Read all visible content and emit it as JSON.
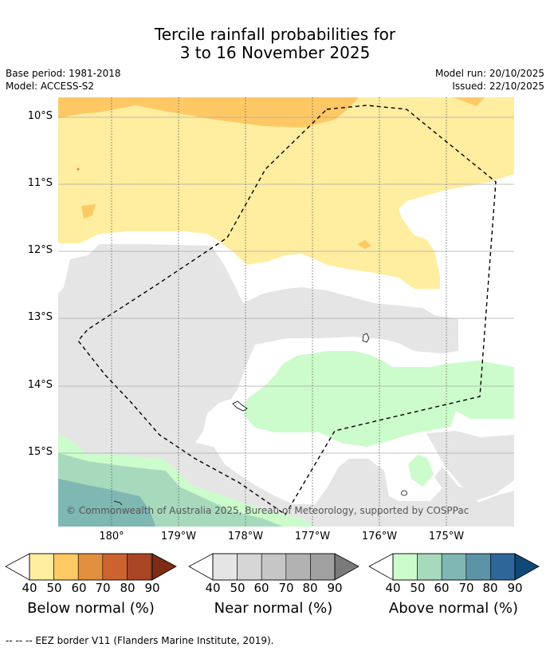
{
  "title": {
    "line1": "Tercile rainfall probabilities for",
    "line2": "3 to 16 November 2025"
  },
  "meta": {
    "base_period": "Base period: 1981-2018",
    "model": "Model: ACCESS-S2",
    "model_run": "Model run: 20/10/2025",
    "issued": "Issued: 22/10/2025"
  },
  "map": {
    "lat_labels": [
      "10°S",
      "11°S",
      "12°S",
      "13°S",
      "14°S",
      "15°S"
    ],
    "lon_labels": [
      "180°",
      "179°W",
      "178°W",
      "177°W",
      "176°W",
      "175°W"
    ],
    "copyright": "© Commonwealth of Australia 2025, Bureau of Meteorology, supported by COSPPac"
  },
  "colorbars": [
    {
      "label": "Below normal (%)",
      "ticks": [
        "40",
        "50",
        "60",
        "70",
        "80",
        "90"
      ],
      "colors": [
        "#ffeda0",
        "#fec965",
        "#e0903e",
        "#cc6230",
        "#a84626",
        "#7f2b15"
      ]
    },
    {
      "label": "Near normal (%)",
      "ticks": [
        "40",
        "50",
        "60",
        "70",
        "80",
        "90"
      ],
      "colors": [
        "#e5e5e5",
        "#d6d6d6",
        "#c6c6c6",
        "#b2b2b2",
        "#a0a0a0",
        "#7a7a7a"
      ]
    },
    {
      "label": "Above normal (%)",
      "ticks": [
        "40",
        "50",
        "60",
        "70",
        "80",
        "90"
      ],
      "colors": [
        "#ccfccb",
        "#a7dabc",
        "#7fb7b3",
        "#5b94a6",
        "#2f6699",
        "#104878"
      ]
    }
  ],
  "footer": "--  --  -- EEZ border V11 (Flanders Marine Institute, 2019)."
}
